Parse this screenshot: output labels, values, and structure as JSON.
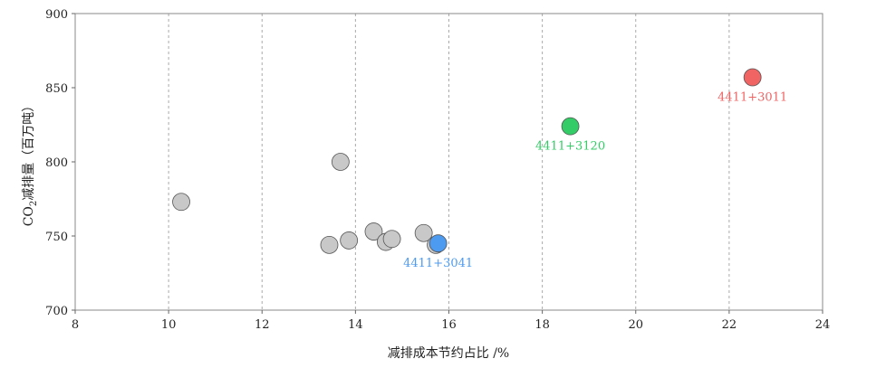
{
  "chart_data": {
    "type": "scatter",
    "title": "",
    "xlabel": "减排成本节约占比 /%",
    "ylabel_main": "CO",
    "ylabel_sub": "2",
    "ylabel_rest": "减排量（百万吨）",
    "xlim": [
      8,
      24
    ],
    "ylim": [
      700,
      900
    ],
    "xticks": [
      8,
      10,
      12,
      14,
      16,
      18,
      20,
      22,
      24
    ],
    "yticks": [
      700,
      750,
      800,
      850,
      900
    ],
    "grid": "vertical dashed",
    "points": [
      {
        "x": 10.27,
        "y": 773,
        "color": "#c8c8c8",
        "label": ""
      },
      {
        "x": 13.68,
        "y": 800,
        "color": "#c8c8c8",
        "label": ""
      },
      {
        "x": 13.44,
        "y": 744,
        "color": "#c8c8c8",
        "label": ""
      },
      {
        "x": 13.86,
        "y": 747,
        "color": "#c8c8c8",
        "label": ""
      },
      {
        "x": 14.39,
        "y": 753,
        "color": "#c8c8c8",
        "label": ""
      },
      {
        "x": 14.65,
        "y": 746,
        "color": "#c8c8c8",
        "label": ""
      },
      {
        "x": 14.78,
        "y": 748,
        "color": "#c8c8c8",
        "label": ""
      },
      {
        "x": 15.46,
        "y": 752,
        "color": "#c8c8c8",
        "label": ""
      },
      {
        "x": 15.72,
        "y": 744,
        "color": "#c8c8c8",
        "label": ""
      },
      {
        "x": 15.77,
        "y": 745,
        "color": "#4d9bf0",
        "label": "4411+3041"
      },
      {
        "x": 18.6,
        "y": 824,
        "color": "#33cc66",
        "label": "4411+3120"
      },
      {
        "x": 22.5,
        "y": 857,
        "color": "#f06464",
        "label": "4411+3011"
      }
    ]
  }
}
